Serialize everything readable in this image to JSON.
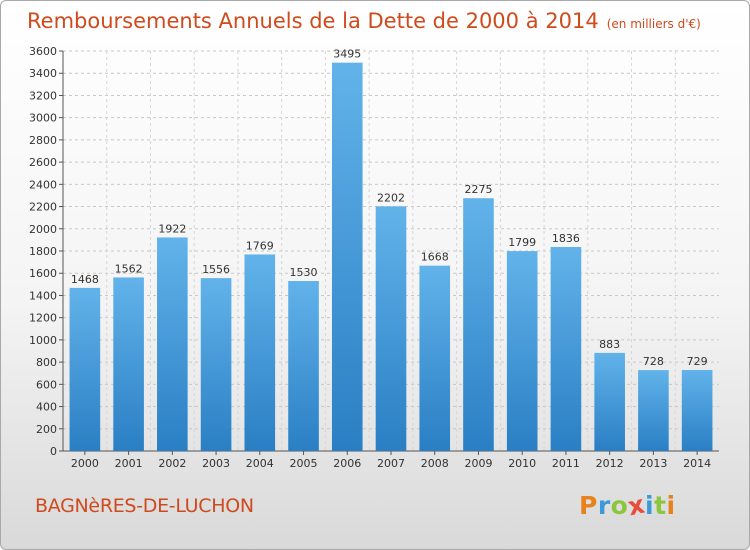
{
  "chart_data": {
    "type": "bar",
    "title": "Remboursements Annuels de la Dette de 2000 à 2014",
    "subtitle": "(en milliers d'€)",
    "categories": [
      "2000",
      "2001",
      "2002",
      "2003",
      "2004",
      "2005",
      "2006",
      "2007",
      "2008",
      "2009",
      "2010",
      "2011",
      "2012",
      "2013",
      "2014"
    ],
    "values": [
      1468,
      1562,
      1922,
      1556,
      1769,
      1530,
      3495,
      2202,
      1668,
      2275,
      1799,
      1836,
      883,
      728,
      729
    ],
    "ylim": [
      0,
      3600
    ],
    "ytick_step": 200,
    "grid": true,
    "bar_color": "#4a9fdc"
  },
  "footer": {
    "city": "BAGNèRES-DE-LUCHON",
    "logo_letters": [
      {
        "ch": "P",
        "color": "#e8821e"
      },
      {
        "ch": "r",
        "color": "#3a9ad9"
      },
      {
        "ch": "o",
        "color": "#8cc63f"
      },
      {
        "ch": "x",
        "color": "#e84c3d"
      },
      {
        "ch": "i",
        "color": "#3a9ad9"
      },
      {
        "ch": "t",
        "color": "#8cc63f"
      },
      {
        "ch": "i",
        "color": "#e8821e"
      }
    ]
  }
}
